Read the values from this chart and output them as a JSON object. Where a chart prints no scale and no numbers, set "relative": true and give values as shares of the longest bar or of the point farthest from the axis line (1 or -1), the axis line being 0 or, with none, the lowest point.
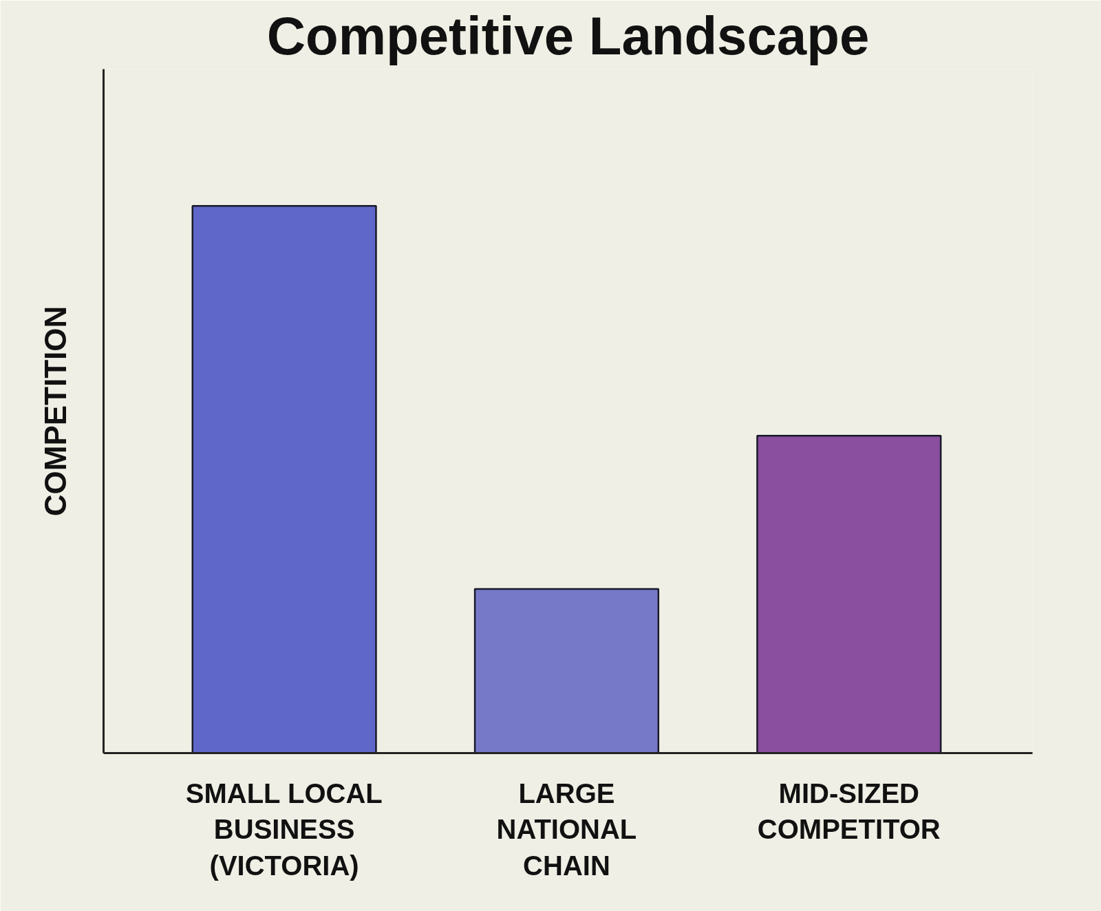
{
  "chart_data": {
    "type": "bar",
    "title": "Competitive Landscape",
    "ylabel": "COMPETITION",
    "relative": true,
    "categories": [
      "SMALL LOCAL BUSINESS (VICTORIA)",
      "LARGE NATIONAL CHAIN",
      "MID-SIZED COMPETITOR"
    ],
    "values": [
      1,
      0.3,
      0.58
    ],
    "colors": [
      "#5f67c8",
      "#7679c8",
      "#8a4f9e"
    ]
  }
}
